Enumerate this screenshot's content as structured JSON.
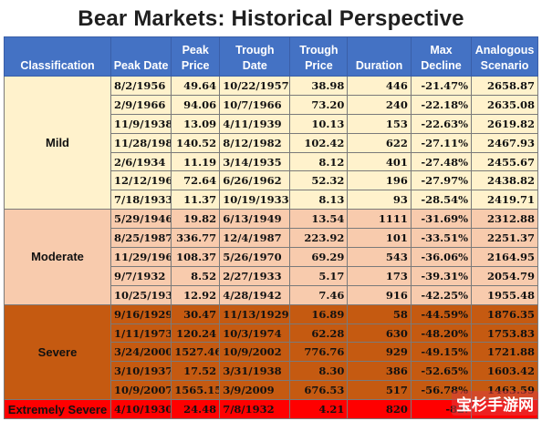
{
  "title": "Bear Markets:  Historical Perspective",
  "columns": [
    "Classification",
    "Peak Date",
    "Peak Price",
    "Trough Date",
    "Trough Price",
    "Duration",
    "Max Decline",
    "Analogous Scenario"
  ],
  "colors": {
    "header": "#4472c4",
    "mild": "#fff2cc",
    "moderate": "#f8cbad",
    "severe": "#c55a11",
    "extreme": "#ff0000"
  },
  "groups": [
    {
      "key": "mild",
      "label": "Mild",
      "rows": [
        [
          "8/2/1956",
          "49.64",
          "10/22/1957",
          "38.98",
          "446",
          "-21.47%",
          "2658.87"
        ],
        [
          "2/9/1966",
          "94.06",
          "10/7/1966",
          "73.20",
          "240",
          "-22.18%",
          "2635.08"
        ],
        [
          "11/9/1938",
          "13.09",
          "4/11/1939",
          "10.13",
          "153",
          "-22.63%",
          "2619.82"
        ],
        [
          "11/28/1980",
          "140.52",
          "8/12/1982",
          "102.42",
          "622",
          "-27.11%",
          "2467.93"
        ],
        [
          "2/6/1934",
          "11.19",
          "3/14/1935",
          "8.12",
          "401",
          "-27.48%",
          "2455.67"
        ],
        [
          "12/12/1961",
          "72.64",
          "6/26/1962",
          "52.32",
          "196",
          "-27.97%",
          "2438.82"
        ],
        [
          "7/18/1933",
          "11.37",
          "10/19/1933",
          "8.13",
          "93",
          "-28.54%",
          "2419.71"
        ]
      ]
    },
    {
      "key": "moderate",
      "label": "Moderate",
      "rows": [
        [
          "5/29/1946",
          "19.82",
          "6/13/1949",
          "13.54",
          "1111",
          "-31.69%",
          "2312.88"
        ],
        [
          "8/25/1987",
          "336.77",
          "12/4/1987",
          "223.92",
          "101",
          "-33.51%",
          "2251.37"
        ],
        [
          "11/29/1968",
          "108.37",
          "5/26/1970",
          "69.29",
          "543",
          "-36.06%",
          "2164.95"
        ],
        [
          "9/7/1932",
          "8.52",
          "2/27/1933",
          "5.17",
          "173",
          "-39.31%",
          "2054.79"
        ],
        [
          "10/25/1939",
          "12.92",
          "4/28/1942",
          "7.46",
          "916",
          "-42.25%",
          "1955.48"
        ]
      ]
    },
    {
      "key": "severe",
      "label": "Severe",
      "rows": [
        [
          "9/16/1929",
          "30.47",
          "11/13/1929",
          "16.89",
          "58",
          "-44.59%",
          "1876.35"
        ],
        [
          "1/11/1973",
          "120.24",
          "10/3/1974",
          "62.28",
          "630",
          "-48.20%",
          "1753.83"
        ],
        [
          "3/24/2000",
          "1527.46",
          "10/9/2002",
          "776.76",
          "929",
          "-49.15%",
          "1721.88"
        ],
        [
          "3/10/1937",
          "17.52",
          "3/31/1938",
          "8.30",
          "386",
          "-52.65%",
          "1603.42"
        ],
        [
          "10/9/2007",
          "1565.15",
          "3/9/2009",
          "676.53",
          "517",
          "-56.78%",
          "1463.59"
        ]
      ]
    },
    {
      "key": "extreme",
      "label": "Extremely Severe",
      "rows": [
        [
          "4/10/1930",
          "24.48",
          "7/8/1932",
          "4.21",
          "820",
          "-82.",
          ""
        ]
      ]
    }
  ],
  "watermark": "宝杉手游网"
}
